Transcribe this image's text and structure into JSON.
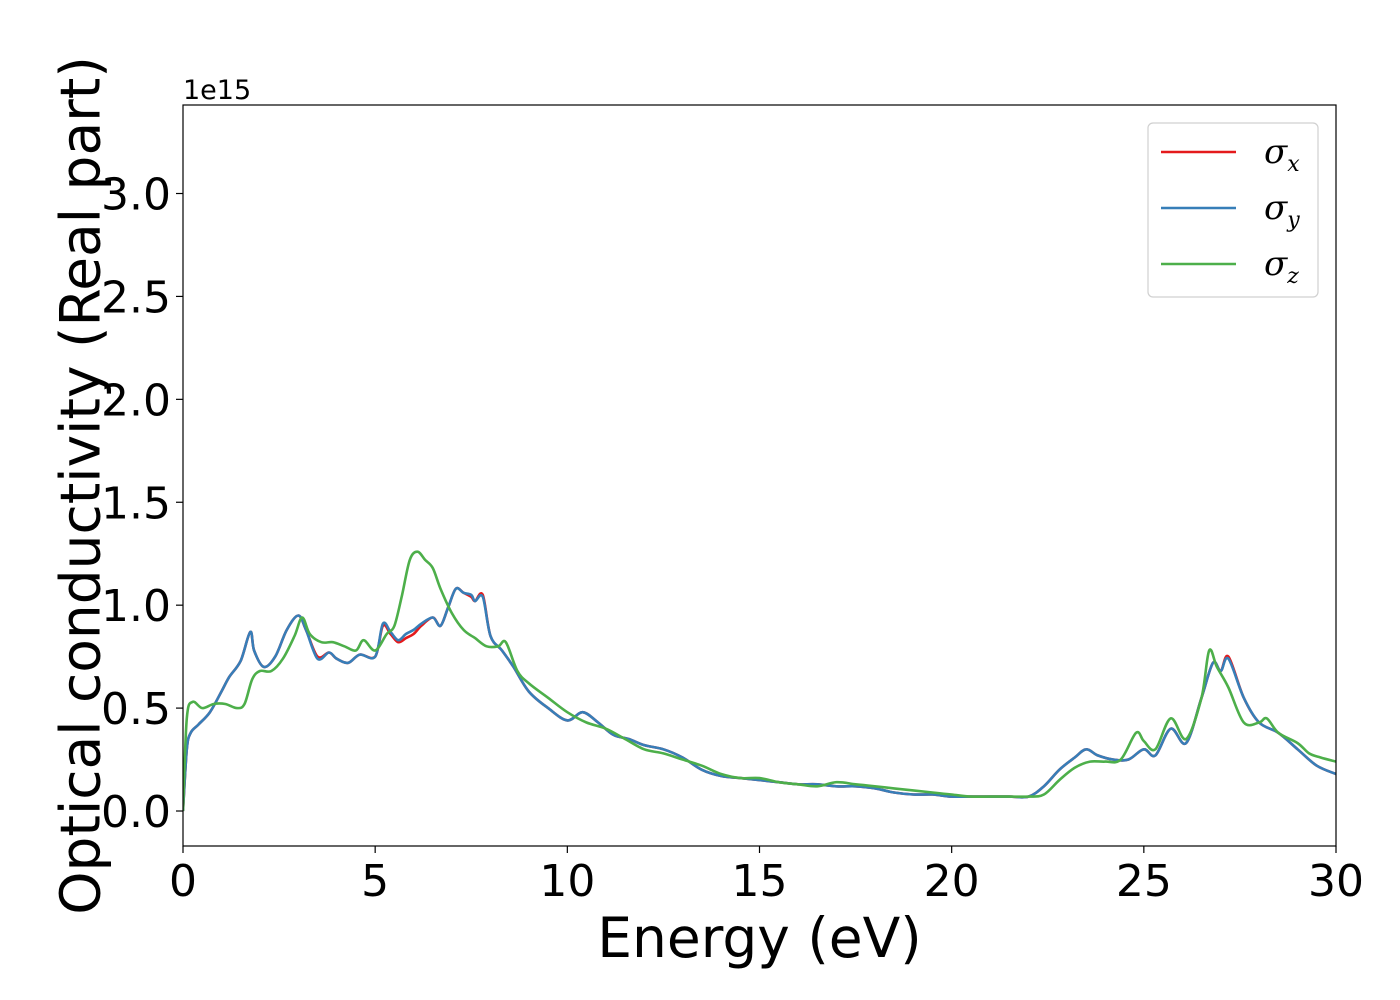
{
  "chart_data": {
    "type": "line",
    "xlabel": "Energy (eV)",
    "ylabel": "Optical conductivity (Real part)",
    "y_offset_label": "1e15",
    "xlim": [
      0,
      30
    ],
    "ylim": [
      -0.17,
      3.43
    ],
    "x_ticks": [
      0,
      5,
      10,
      15,
      20,
      25,
      30
    ],
    "x_tick_labels": [
      "0",
      "5",
      "10",
      "15",
      "20",
      "25",
      "30"
    ],
    "y_ticks": [
      0.0,
      0.5,
      1.0,
      1.5,
      2.0,
      2.5,
      3.0
    ],
    "y_tick_labels": [
      "0.0",
      "0.5",
      "1.0",
      "1.5",
      "2.0",
      "2.5",
      "3.0"
    ],
    "grid": false,
    "legend_position": "top-right",
    "series": [
      {
        "name": "σx",
        "symbol": "σ",
        "subscript": "x",
        "color": "#e41a1c",
        "x": [
          0,
          0.1,
          0.2,
          0.4,
          0.7,
          1.0,
          1.2,
          1.5,
          1.75,
          1.85,
          2.1,
          2.4,
          2.7,
          3.0,
          3.2,
          3.5,
          3.8,
          4.0,
          4.3,
          4.6,
          5.0,
          5.2,
          5.4,
          5.6,
          5.8,
          6.0,
          6.2,
          6.5,
          6.7,
          6.9,
          7.1,
          7.3,
          7.5,
          7.6,
          7.8,
          8.0,
          8.3,
          8.6,
          9.0,
          9.5,
          10.0,
          10.4,
          10.8,
          11.2,
          11.6,
          12.0,
          12.5,
          13.0,
          13.5,
          14.0,
          14.5,
          15.0,
          15.5,
          16.0,
          16.5,
          17.0,
          17.5,
          18.0,
          18.5,
          19.0,
          19.5,
          20.0,
          20.5,
          21.0,
          21.5,
          22.0,
          22.4,
          22.8,
          23.2,
          23.5,
          23.8,
          24.2,
          24.6,
          25.0,
          25.3,
          25.7,
          26.1,
          26.5,
          26.8,
          27.0,
          27.2,
          27.6,
          28.0,
          28.5,
          29.0,
          29.5,
          30.0
        ],
        "y": [
          0,
          0.3,
          0.38,
          0.42,
          0.48,
          0.58,
          0.65,
          0.73,
          0.87,
          0.78,
          0.7,
          0.75,
          0.88,
          0.95,
          0.88,
          0.75,
          0.77,
          0.74,
          0.72,
          0.76,
          0.75,
          0.9,
          0.86,
          0.82,
          0.84,
          0.86,
          0.9,
          0.94,
          0.9,
          0.99,
          1.08,
          1.06,
          1.04,
          1.02,
          1.05,
          0.85,
          0.78,
          0.7,
          0.58,
          0.5,
          0.44,
          0.48,
          0.43,
          0.37,
          0.35,
          0.32,
          0.3,
          0.26,
          0.2,
          0.17,
          0.16,
          0.15,
          0.14,
          0.13,
          0.13,
          0.12,
          0.12,
          0.11,
          0.09,
          0.08,
          0.08,
          0.07,
          0.07,
          0.07,
          0.07,
          0.07,
          0.12,
          0.2,
          0.26,
          0.3,
          0.27,
          0.25,
          0.25,
          0.3,
          0.27,
          0.4,
          0.33,
          0.55,
          0.72,
          0.68,
          0.75,
          0.55,
          0.43,
          0.38,
          0.3,
          0.22,
          0.18
        ]
      },
      {
        "name": "σy",
        "symbol": "σ",
        "subscript": "y",
        "color": "#377eb8",
        "x": [
          0,
          0.1,
          0.2,
          0.4,
          0.7,
          1.0,
          1.2,
          1.5,
          1.75,
          1.85,
          2.1,
          2.4,
          2.7,
          3.0,
          3.2,
          3.5,
          3.8,
          4.0,
          4.3,
          4.6,
          5.0,
          5.2,
          5.4,
          5.6,
          5.8,
          6.0,
          6.2,
          6.5,
          6.7,
          6.9,
          7.1,
          7.3,
          7.5,
          7.6,
          7.8,
          8.0,
          8.3,
          8.6,
          9.0,
          9.5,
          10.0,
          10.4,
          10.8,
          11.2,
          11.6,
          12.0,
          12.5,
          13.0,
          13.5,
          14.0,
          14.5,
          15.0,
          15.5,
          16.0,
          16.5,
          17.0,
          17.5,
          18.0,
          18.5,
          19.0,
          19.5,
          20.0,
          20.5,
          21.0,
          21.5,
          22.0,
          22.4,
          22.8,
          23.2,
          23.5,
          23.8,
          24.2,
          24.6,
          25.0,
          25.3,
          25.7,
          26.1,
          26.5,
          26.8,
          27.0,
          27.2,
          27.6,
          28.0,
          28.5,
          29.0,
          29.5,
          30.0
        ],
        "y": [
          0,
          0.3,
          0.38,
          0.42,
          0.48,
          0.58,
          0.65,
          0.73,
          0.87,
          0.78,
          0.7,
          0.75,
          0.88,
          0.95,
          0.88,
          0.74,
          0.77,
          0.74,
          0.72,
          0.76,
          0.75,
          0.91,
          0.87,
          0.83,
          0.86,
          0.88,
          0.91,
          0.94,
          0.9,
          0.99,
          1.08,
          1.06,
          1.05,
          1.02,
          1.04,
          0.85,
          0.78,
          0.7,
          0.58,
          0.5,
          0.44,
          0.48,
          0.43,
          0.37,
          0.35,
          0.32,
          0.3,
          0.26,
          0.2,
          0.17,
          0.16,
          0.15,
          0.14,
          0.13,
          0.13,
          0.12,
          0.12,
          0.11,
          0.09,
          0.08,
          0.08,
          0.07,
          0.07,
          0.07,
          0.07,
          0.07,
          0.12,
          0.2,
          0.26,
          0.3,
          0.27,
          0.25,
          0.25,
          0.3,
          0.27,
          0.4,
          0.33,
          0.55,
          0.72,
          0.68,
          0.74,
          0.55,
          0.43,
          0.38,
          0.3,
          0.22,
          0.18
        ]
      },
      {
        "name": "σz",
        "symbol": "σ",
        "subscript": "z",
        "color": "#4daf4a",
        "x": [
          0,
          0.1,
          0.25,
          0.5,
          0.8,
          1.1,
          1.4,
          1.6,
          1.8,
          2.0,
          2.3,
          2.6,
          2.9,
          3.1,
          3.3,
          3.6,
          3.9,
          4.2,
          4.5,
          4.7,
          5.0,
          5.3,
          5.5,
          5.7,
          5.9,
          6.1,
          6.3,
          6.5,
          6.7,
          7.0,
          7.3,
          7.6,
          7.9,
          8.2,
          8.4,
          8.7,
          9.0,
          9.5,
          10.0,
          10.5,
          11.0,
          11.5,
          12.0,
          12.5,
          13.0,
          13.5,
          14.0,
          14.5,
          15.0,
          15.5,
          16.0,
          16.5,
          17.0,
          17.5,
          18.0,
          18.5,
          19.0,
          19.5,
          20.0,
          20.5,
          21.0,
          21.5,
          22.0,
          22.4,
          22.8,
          23.2,
          23.6,
          24.0,
          24.4,
          24.8,
          25.0,
          25.3,
          25.7,
          26.1,
          26.5,
          26.7,
          26.9,
          27.2,
          27.6,
          28.0,
          28.2,
          28.5,
          29.0,
          29.3,
          29.6,
          30.0
        ],
        "y": [
          0,
          0.45,
          0.53,
          0.5,
          0.52,
          0.52,
          0.5,
          0.52,
          0.64,
          0.68,
          0.68,
          0.74,
          0.85,
          0.94,
          0.86,
          0.82,
          0.82,
          0.8,
          0.78,
          0.83,
          0.78,
          0.86,
          0.9,
          1.05,
          1.22,
          1.26,
          1.22,
          1.18,
          1.08,
          0.96,
          0.88,
          0.84,
          0.8,
          0.8,
          0.82,
          0.68,
          0.62,
          0.55,
          0.48,
          0.43,
          0.4,
          0.35,
          0.3,
          0.28,
          0.25,
          0.22,
          0.18,
          0.16,
          0.16,
          0.14,
          0.13,
          0.12,
          0.14,
          0.13,
          0.12,
          0.11,
          0.1,
          0.09,
          0.08,
          0.07,
          0.07,
          0.07,
          0.07,
          0.08,
          0.15,
          0.21,
          0.24,
          0.24,
          0.25,
          0.38,
          0.34,
          0.3,
          0.45,
          0.35,
          0.55,
          0.78,
          0.7,
          0.6,
          0.43,
          0.43,
          0.45,
          0.38,
          0.33,
          0.28,
          0.26,
          0.24
        ]
      }
    ]
  }
}
